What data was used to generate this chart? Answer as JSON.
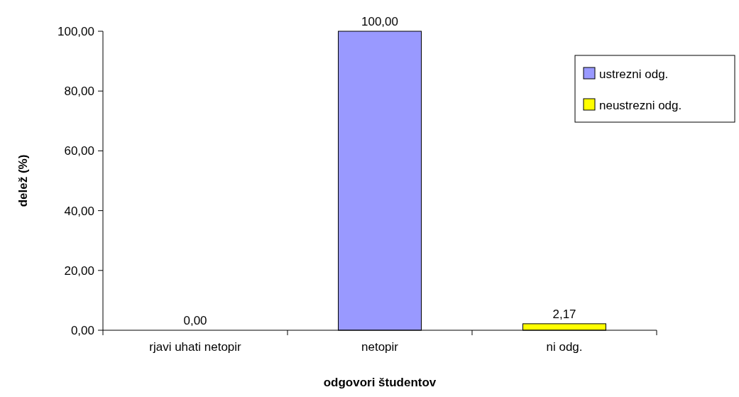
{
  "chart_data": {
    "type": "bar",
    "xlabel": "odgovori študentov",
    "ylabel": "delež (%)",
    "categories": [
      "rjavi uhati netopir",
      "netopir",
      "ni odg."
    ],
    "stacked": true,
    "series": [
      {
        "name": "ustrezni odg.",
        "color": "#9999ff",
        "values": [
          0,
          100,
          null
        ],
        "value_labels": [
          "0,00",
          "100,00",
          null
        ]
      },
      {
        "name": "neustrezni odg.",
        "color": "#ffff00",
        "values": [
          null,
          null,
          2.17
        ],
        "value_labels": [
          null,
          null,
          "2,17"
        ]
      }
    ],
    "ylim": [
      0,
      100
    ],
    "yticks": [
      {
        "value": 0,
        "label": "0,00"
      },
      {
        "value": 20,
        "label": "20,00"
      },
      {
        "value": 40,
        "label": "40,00"
      },
      {
        "value": 60,
        "label": "60,00"
      },
      {
        "value": 80,
        "label": "80,00"
      },
      {
        "value": 100,
        "label": "100,00"
      }
    ],
    "grid": false,
    "legend": "right"
  }
}
